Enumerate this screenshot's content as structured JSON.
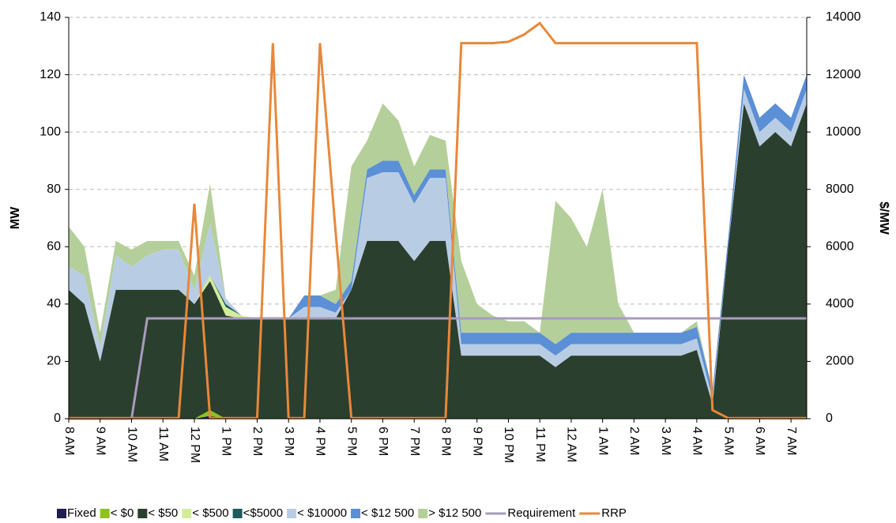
{
  "chart_data": {
    "type": "stacked-area",
    "ylabel": "MW",
    "y2label": "$/MW",
    "categories": [
      "8 AM",
      null,
      "9 AM",
      null,
      "10 AM",
      null,
      "11 AM",
      null,
      "12 PM",
      null,
      "1 PM",
      null,
      "2 PM",
      null,
      "3 PM",
      null,
      "4 PM",
      null,
      "5 PM",
      null,
      "6 PM",
      null,
      "7 PM",
      null,
      "8 PM",
      null,
      "9 PM",
      null,
      "10 PM",
      null,
      "11 PM",
      null,
      "12 AM",
      null,
      "1 AM",
      null,
      "2 AM",
      null,
      "3 AM",
      null,
      "4 AM",
      null,
      "5 AM",
      null,
      "6 AM",
      null,
      "7 AM",
      null
    ],
    "ylim": [
      0,
      140
    ],
    "yticks": [
      0,
      20,
      40,
      60,
      80,
      100,
      120,
      140
    ],
    "y2lim": [
      0,
      14000
    ],
    "y2ticks": [
      0,
      2000,
      4000,
      6000,
      8000,
      10000,
      12000,
      14000
    ],
    "grid": true,
    "series": [
      {
        "name": "Fixed",
        "color": "#1f1f4f",
        "values": [
          0,
          0,
          0,
          0,
          0,
          0,
          0,
          0,
          0,
          1,
          0,
          0,
          0,
          0,
          0,
          0,
          0,
          0,
          0,
          0,
          0,
          0,
          0,
          0,
          0,
          0,
          0,
          0,
          0,
          0,
          0,
          0,
          0,
          0,
          0,
          0,
          0,
          0,
          0,
          0,
          0,
          0,
          0,
          0,
          0,
          0,
          0,
          0
        ]
      },
      {
        "name": "< $0",
        "color": "#8dc21f",
        "values": [
          0,
          0,
          0,
          0,
          0,
          0,
          0,
          0,
          0,
          2,
          0,
          0,
          0,
          0,
          0,
          0,
          0,
          0,
          0,
          0,
          0,
          0,
          0,
          0,
          0,
          0,
          0,
          0,
          0,
          0,
          0,
          0,
          0,
          0,
          0,
          0,
          0,
          0,
          0,
          0,
          0,
          0,
          0,
          0,
          0,
          0,
          0,
          0
        ]
      },
      {
        "name": "< $50",
        "color": "#2b3f2e",
        "values": [
          45,
          40,
          20,
          45,
          45,
          45,
          45,
          45,
          40,
          45,
          36,
          35,
          35,
          35,
          35,
          35,
          35,
          35,
          45,
          62,
          62,
          62,
          55,
          62,
          62,
          22,
          22,
          22,
          22,
          22,
          22,
          18,
          22,
          22,
          22,
          22,
          22,
          22,
          22,
          22,
          24,
          5,
          60,
          110,
          95,
          100,
          95,
          110
        ]
      },
      {
        "name": "< $500",
        "color": "#d4ec9a",
        "values": [
          0,
          0,
          0,
          0,
          0,
          0,
          0,
          0,
          0,
          2,
          3,
          1,
          0,
          0,
          0,
          0,
          0,
          0,
          0,
          0,
          0,
          0,
          0,
          0,
          0,
          0,
          0,
          0,
          0,
          0,
          0,
          0,
          0,
          0,
          0,
          0,
          0,
          0,
          0,
          0,
          0,
          0,
          0,
          0,
          0,
          0,
          0,
          0
        ]
      },
      {
        "name": "<$5000",
        "color": "#1e5a5e",
        "values": [
          0,
          0,
          0,
          0,
          0,
          0,
          0,
          0,
          0,
          0,
          1,
          0,
          0,
          0,
          0,
          0,
          0,
          0,
          0,
          0,
          0,
          0,
          0,
          0,
          0,
          0,
          0,
          0,
          0,
          0,
          0,
          0,
          0,
          0,
          0,
          0,
          0,
          0,
          0,
          0,
          0,
          0,
          0,
          0,
          0,
          0,
          0,
          0
        ]
      },
      {
        "name": "< $10000",
        "color": "#b8cde4",
        "values": [
          8,
          10,
          5,
          12,
          8,
          12,
          14,
          14,
          5,
          18,
          2,
          0,
          0,
          0,
          0,
          4,
          4,
          2,
          0,
          22,
          24,
          24,
          20,
          22,
          22,
          4,
          4,
          4,
          4,
          4,
          4,
          4,
          4,
          4,
          4,
          4,
          4,
          4,
          4,
          4,
          4,
          2,
          0,
          5,
          5,
          5,
          5,
          5
        ]
      },
      {
        "name": "< $12 500",
        "color": "#5b8fd6",
        "values": [
          0,
          0,
          0,
          0,
          0,
          0,
          0,
          0,
          0,
          0,
          0,
          0,
          0,
          0,
          0,
          4,
          4,
          3,
          3,
          3,
          4,
          4,
          3,
          3,
          3,
          4,
          4,
          4,
          4,
          4,
          4,
          4,
          4,
          4,
          4,
          4,
          4,
          4,
          4,
          4,
          4,
          3,
          3,
          5,
          5,
          5,
          5,
          5
        ]
      },
      {
        "name": "> $12 500",
        "color": "#b5cf9a",
        "values": [
          14,
          10,
          5,
          5,
          6,
          5,
          3,
          3,
          5,
          14,
          0,
          0,
          0,
          0,
          0,
          0,
          0,
          5,
          40,
          10,
          20,
          14,
          10,
          12,
          10,
          25,
          10,
          6,
          4,
          4,
          0,
          50,
          40,
          30,
          50,
          10,
          0,
          0,
          0,
          0,
          2,
          0,
          0,
          0,
          0,
          0,
          0,
          0
        ]
      },
      {
        "name": "Requirement",
        "type": "line",
        "color": "#a99bbd",
        "values": [
          0,
          0,
          0,
          0,
          0,
          35,
          35,
          35,
          35,
          35,
          35,
          35,
          35,
          35,
          35,
          35,
          35,
          35,
          35,
          35,
          35,
          35,
          35,
          35,
          35,
          35,
          35,
          35,
          35,
          35,
          35,
          35,
          35,
          35,
          35,
          35,
          35,
          35,
          35,
          35,
          35,
          35,
          35,
          35,
          35,
          35,
          35,
          35
        ]
      },
      {
        "name": "RRP",
        "type": "line",
        "axis": "y2",
        "color": "#e8883a",
        "values": [
          20,
          20,
          20,
          20,
          20,
          20,
          20,
          20,
          7500,
          20,
          20,
          20,
          20,
          13100,
          20,
          20,
          13100,
          6500,
          20,
          20,
          20,
          20,
          20,
          20,
          20,
          13100,
          13100,
          13100,
          13150,
          13400,
          13800,
          13100,
          13100,
          13100,
          13100,
          13100,
          13100,
          13100,
          13100,
          13100,
          13100,
          300,
          20,
          20,
          20,
          20,
          20,
          20
        ]
      }
    ]
  }
}
